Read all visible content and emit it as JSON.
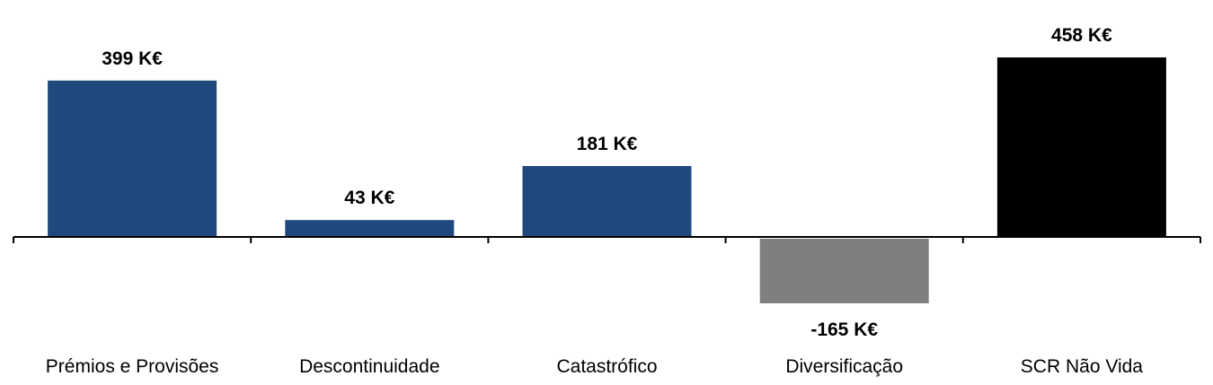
{
  "chart_data": {
    "type": "bar",
    "title": "",
    "xlabel": "",
    "ylabel": "",
    "unit": "K€",
    "categories": [
      "Prémios e Provisões",
      "Descontinuidade",
      "Catastrófico",
      "Diversificação",
      "SCR Não Vida"
    ],
    "values": [
      399,
      43,
      181,
      -165,
      458
    ],
    "value_labels": [
      "399 K€",
      "43 K€",
      "181 K€",
      "-165 K€",
      "458 K€"
    ],
    "colors": [
      "#1f497d",
      "#1f497d",
      "#1f497d",
      "#7f7f7f",
      "#000000"
    ],
    "ylim": [
      -220,
      560
    ],
    "grid": false,
    "legend": "none"
  }
}
